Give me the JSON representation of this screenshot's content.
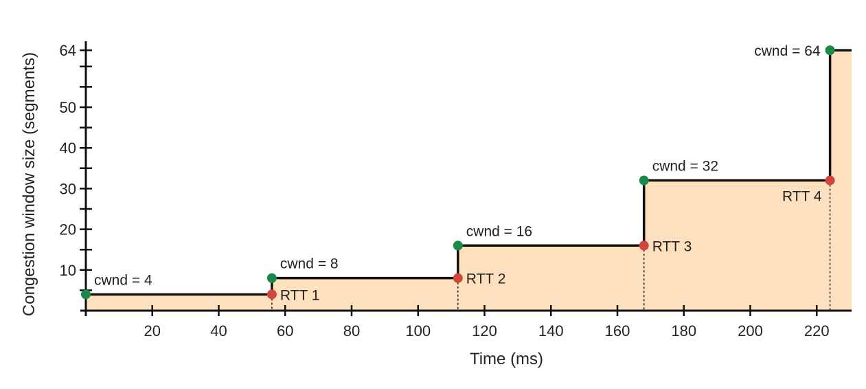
{
  "chart_data": {
    "type": "area",
    "xlabel": "Time (ms)",
    "ylabel": "Congestion window size (segments)",
    "xlim": [
      0,
      230
    ],
    "ylim": [
      0,
      64
    ],
    "x_ticks": [
      20,
      40,
      60,
      80,
      100,
      120,
      140,
      160,
      180,
      200,
      220
    ],
    "y_tick_labels": [
      10,
      20,
      30,
      40,
      50,
      64
    ],
    "y_minor_ticks": [
      5,
      10,
      15,
      20,
      25,
      30,
      35,
      40,
      45,
      50,
      55,
      60,
      64
    ],
    "grid": false,
    "colors": {
      "fill": "#fde0bd",
      "line": "#111111",
      "cwnd_point": "#1a8a4a",
      "rtt_point": "#d0453c"
    },
    "steps": [
      {
        "x": 0,
        "y": 4
      },
      {
        "x": 56,
        "y": 8
      },
      {
        "x": 112,
        "y": 16
      },
      {
        "x": 168,
        "y": 32
      },
      {
        "x": 224,
        "y": 64
      }
    ],
    "cwnd_points": [
      {
        "x": 0,
        "y": 4,
        "label": "cwnd = 4"
      },
      {
        "x": 56,
        "y": 8,
        "label": "cwnd = 8"
      },
      {
        "x": 112,
        "y": 16,
        "label": "cwnd = 16"
      },
      {
        "x": 168,
        "y": 32,
        "label": "cwnd = 32"
      },
      {
        "x": 224,
        "y": 64,
        "label": "cwnd = 64"
      }
    ],
    "rtt_points": [
      {
        "x": 56,
        "y": 4,
        "label": "RTT 1"
      },
      {
        "x": 112,
        "y": 8,
        "label": "RTT 2"
      },
      {
        "x": 168,
        "y": 16,
        "label": "RTT 3"
      },
      {
        "x": 224,
        "y": 32,
        "label": "RTT 4"
      }
    ]
  }
}
